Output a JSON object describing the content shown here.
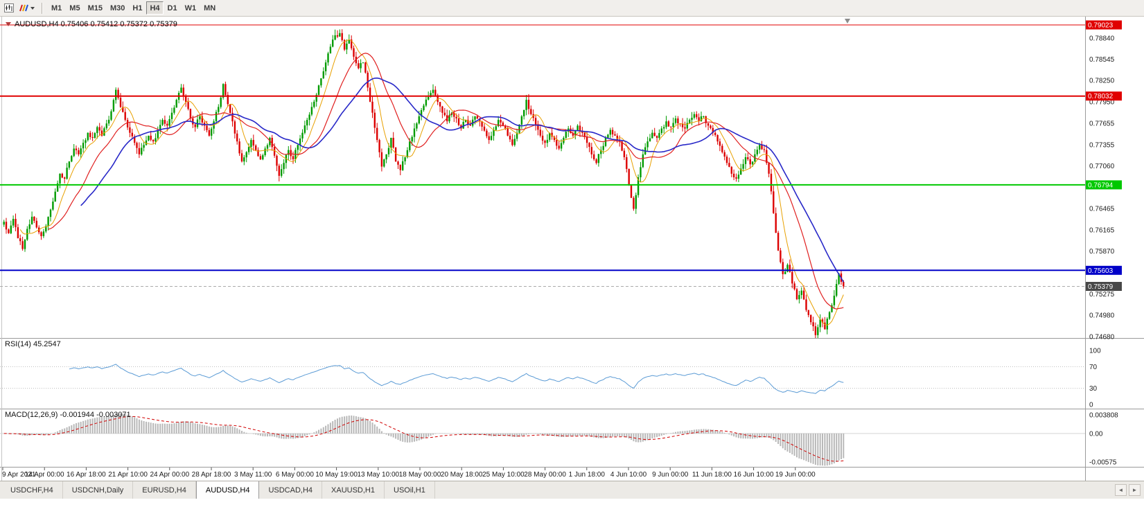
{
  "toolbar": {
    "timeframes": [
      "M1",
      "M5",
      "M15",
      "M30",
      "H1",
      "H4",
      "D1",
      "W1",
      "MN"
    ],
    "active_timeframe": "H4",
    "icons": [
      "chart-window-icon",
      "chart-colors-icon"
    ]
  },
  "chart": {
    "title": "AUDUSD,H4 0.75406 0.75412 0.75372 0.75379",
    "symbol": "AUDUSD",
    "period": "H4",
    "open": "0.75406",
    "high": "0.75412",
    "low": "0.75372",
    "close": "0.75379"
  },
  "colors": {
    "up": "#009b00",
    "down": "#dc0000",
    "macd_hist": "#b8b8b8",
    "macd_signal": "#d00000",
    "bid_line": "#aaaaaa",
    "bid_badge": "#484848",
    "resistance": "#e00000",
    "support_green": "#00c800",
    "support_blue": "#0000c8"
  },
  "chart_data": {
    "type": "candlestick",
    "symbol": "AUDUSD",
    "timeframe": "H4",
    "price_range": {
      "top": 0.7912,
      "bottom": 0.7466
    },
    "price_path": [
      0.7628,
      0.7612,
      0.7632,
      0.7605,
      0.759,
      0.7618,
      0.7635,
      0.762,
      0.7608,
      0.7622,
      0.7645,
      0.767,
      0.7695,
      0.7688,
      0.7712,
      0.773,
      0.7722,
      0.7738,
      0.7752,
      0.7745,
      0.776,
      0.7748,
      0.7765,
      0.7782,
      0.7812,
      0.7788,
      0.777,
      0.7752,
      0.7738,
      0.7722,
      0.7735,
      0.7748,
      0.774,
      0.7755,
      0.777,
      0.7762,
      0.778,
      0.7798,
      0.7815,
      0.7795,
      0.7772,
      0.776,
      0.7775,
      0.7762,
      0.7748,
      0.7768,
      0.7788,
      0.782,
      0.7792,
      0.7768,
      0.774,
      0.7712,
      0.7725,
      0.7742,
      0.7728,
      0.7715,
      0.773,
      0.7745,
      0.772,
      0.7692,
      0.771,
      0.7728,
      0.7715,
      0.7735,
      0.7752,
      0.777,
      0.7788,
      0.7805,
      0.7828,
      0.785,
      0.7872,
      0.7888,
      0.7891,
      0.7868,
      0.7882,
      0.7858,
      0.7842,
      0.785,
      0.7815,
      0.778,
      0.7742,
      0.7705,
      0.7722,
      0.7745,
      0.7712,
      0.77,
      0.7718,
      0.774,
      0.7758,
      0.7775,
      0.779,
      0.7802,
      0.7812,
      0.7795,
      0.778,
      0.7768,
      0.778,
      0.7772,
      0.7758,
      0.777,
      0.7762,
      0.7775,
      0.7768,
      0.7755,
      0.7742,
      0.7756,
      0.777,
      0.7762,
      0.7748,
      0.7735,
      0.7752,
      0.7775,
      0.7798,
      0.7778,
      0.7762,
      0.7748,
      0.7738,
      0.7752,
      0.7742,
      0.773,
      0.7745,
      0.7758,
      0.7748,
      0.7762,
      0.7752,
      0.7738,
      0.7722,
      0.771,
      0.7728,
      0.7745,
      0.7756,
      0.7748,
      0.774,
      0.7718,
      0.768,
      0.7646,
      0.769,
      0.7722,
      0.774,
      0.7752,
      0.7745,
      0.7758,
      0.7768,
      0.776,
      0.7772,
      0.7765,
      0.7758,
      0.777,
      0.7778,
      0.7768,
      0.7775,
      0.7762,
      0.7752,
      0.774,
      0.7725,
      0.771,
      0.7695,
      0.7688,
      0.7702,
      0.7718,
      0.7708,
      0.7722,
      0.7735,
      0.7728,
      0.7695,
      0.764,
      0.7588,
      0.7555,
      0.7568,
      0.7542,
      0.752,
      0.7532,
      0.7505,
      0.7488,
      0.747,
      0.7492,
      0.7478,
      0.7502,
      0.7525,
      0.7556,
      0.7538
    ],
    "h_lines": [
      {
        "value": 0.79023,
        "label": "0.79023",
        "color": "#e00000",
        "width": 1
      },
      {
        "value": 0.78032,
        "label": "0.78032",
        "color": "#e00000",
        "width": 2
      },
      {
        "value": 0.76794,
        "label": "0.76794",
        "color": "#00c800",
        "width": 2
      },
      {
        "value": 0.75603,
        "label": "0.75603",
        "color": "#0000c8",
        "width": 2
      }
    ],
    "current_price": {
      "value": 0.75379,
      "label": "0.75379"
    },
    "y_axis_ticks": [
      "0.78840",
      "0.78545",
      "0.78250",
      "0.77950",
      "0.77655",
      "0.77355",
      "0.77060",
      "0.76465",
      "0.76165",
      "0.75870",
      "0.75275",
      "0.74980",
      "0.74680"
    ],
    "x_axis_labels": [
      "9 Apr 2021",
      "14 Apr 00:00",
      "16 Apr 18:00",
      "21 Apr 10:00",
      "24 Apr 00:00",
      "28 Apr 18:00",
      "3 May 11:00",
      "6 May 00:00",
      "10 May 19:00",
      "13 May 10:00",
      "18 May 00:00",
      "20 May 18:00",
      "25 May 10:00",
      "28 May 00:00",
      "1 Jun 18:00",
      "4 Jun 10:00",
      "9 Jun 00:00",
      "11 Jun 18:00",
      "16 Jun 10:00",
      "19 Jun 00:00"
    ],
    "ma_lines": [
      {
        "name": "fast",
        "color": "#e8a000"
      },
      {
        "name": "medium",
        "color": "#e02020"
      },
      {
        "name": "slow",
        "color": "#2828c8"
      }
    ],
    "rsi": {
      "label": "RSI(14) 45.2547",
      "period": 14,
      "current": 45.2547,
      "levels": [
        100,
        70,
        30,
        0
      ],
      "color": "#5b9bd5"
    },
    "macd": {
      "label": "MACD(12,26,9) -0.001944 -0.003071",
      "fast": 12,
      "slow": 26,
      "signal": 9,
      "main_value": -0.001944,
      "signal_value": -0.003071,
      "scale_ticks": [
        "0.003808",
        "0.00",
        "-0.00575"
      ],
      "range": {
        "max": 0.0042,
        "min": -0.0062
      }
    }
  },
  "bottom_tabs": {
    "tabs": [
      "USDCHF,H4",
      "USDCNH,Daily",
      "EURUSD,H4",
      "AUDUSD,H4",
      "USDCAD,H4",
      "XAUUSD,H1",
      "USOil,H1"
    ],
    "active_index": 3,
    "scroll_left": "◄",
    "scroll_right": "►"
  }
}
